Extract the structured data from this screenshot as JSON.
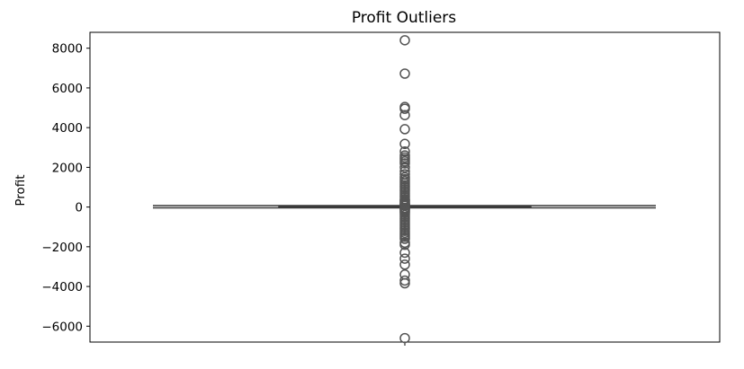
{
  "chart_data": {
    "type": "boxplot",
    "title": "Profit Outliers",
    "xlabel": "",
    "ylabel": "Profit",
    "ylim": [
      -6800,
      8800
    ],
    "yticks": [
      8000,
      6000,
      4000,
      2000,
      0,
      -2000,
      -4000,
      -6000
    ],
    "ytick_labels": [
      "8000",
      "6000",
      "4000",
      "2000",
      "0",
      "−2000",
      "−4000",
      "−6000"
    ],
    "grid": false,
    "box": {
      "q1": 2,
      "median": 9,
      "q3": 29,
      "whisker_low": -39,
      "whisker_high": 71,
      "color": "#3a3a3a",
      "fill": "#1f77b4"
    },
    "outliers": [
      8400,
      6720,
      5040,
      4950,
      4630,
      3920,
      3180,
      2800,
      2600,
      2500,
      2400,
      2300,
      2200,
      2000,
      1800,
      1650,
      1500,
      1400,
      1300,
      1200,
      1100,
      1000,
      900,
      800,
      700,
      600,
      500,
      400,
      350,
      300,
      250,
      200,
      150,
      120,
      100,
      90,
      85,
      80,
      75,
      -50,
      -60,
      -80,
      -100,
      -150,
      -200,
      -250,
      -300,
      -400,
      -500,
      -600,
      -700,
      -800,
      -900,
      -1000,
      -1100,
      -1200,
      -1300,
      -1400,
      -1500,
      -1600,
      -1800,
      -1900,
      -2300,
      -2600,
      -2900,
      -3400,
      -3700,
      -3840,
      -6600
    ]
  }
}
